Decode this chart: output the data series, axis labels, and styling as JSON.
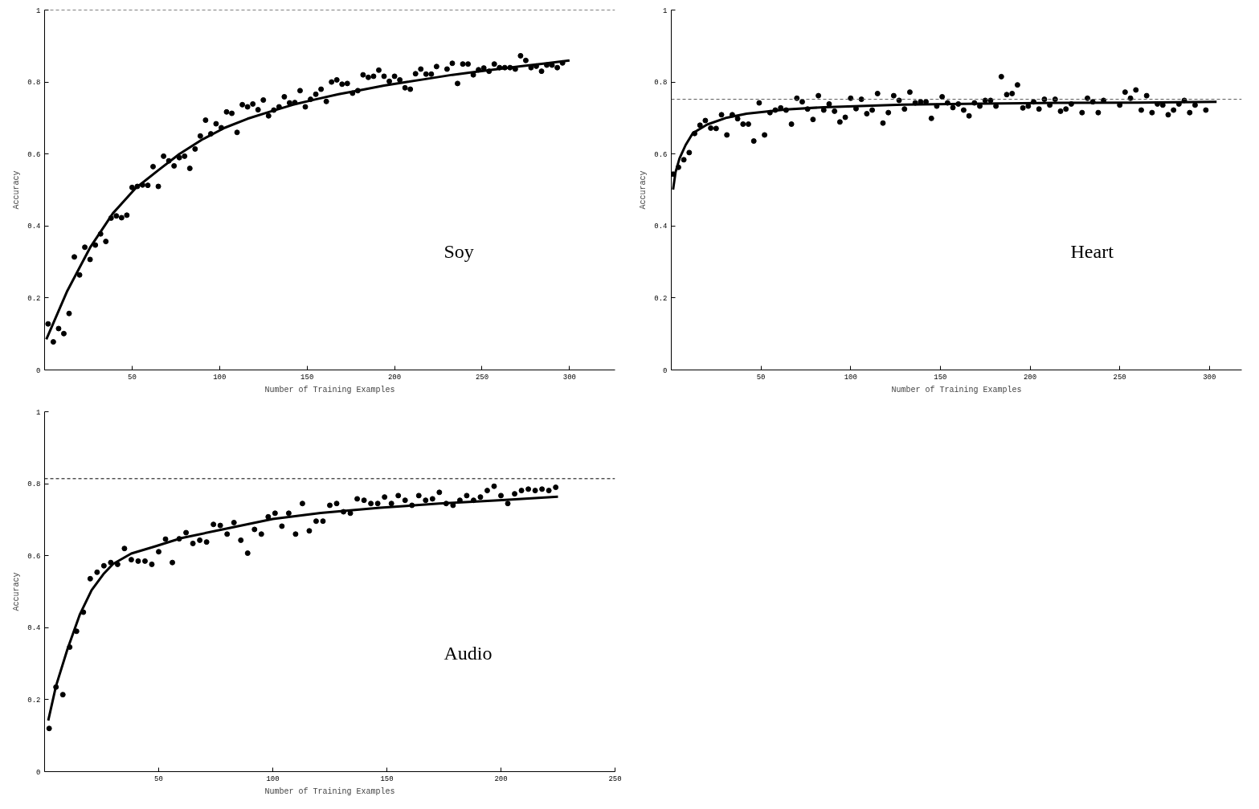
{
  "chart_data": [
    {
      "type": "scatter",
      "xlabel": "Number of Training Examples",
      "ylabel": "Accuracy",
      "annotations": [
        "Soy"
      ],
      "xlim": [
        0,
        326
      ],
      "ylim": [
        0,
        1
      ],
      "xticks": [
        50,
        100,
        150,
        200,
        250,
        300
      ],
      "yticks": [
        0,
        0.2,
        0.4,
        0.6,
        0.8,
        1
      ],
      "marker": "circle",
      "grid": false,
      "ref_lines": [
        {
          "axis": "y",
          "value": 1,
          "color": "#000000",
          "line_style": "dashed"
        }
      ],
      "series": [
        {
          "color": "#000000",
          "x": [
            2,
            5,
            8,
            11,
            14,
            17,
            20,
            23,
            26,
            29,
            32,
            35,
            38,
            41,
            44,
            47,
            50,
            53,
            56,
            59,
            62,
            65,
            68,
            71,
            74,
            77,
            80,
            83,
            86,
            89,
            92,
            95,
            98,
            101,
            104,
            107,
            110,
            113,
            116,
            119,
            122,
            125,
            128,
            131,
            134,
            137,
            140,
            143,
            146,
            149,
            152,
            155,
            158,
            161,
            164,
            167,
            170,
            173,
            176,
            179,
            182,
            185,
            188,
            191,
            194,
            197,
            200,
            203,
            206,
            209,
            212,
            215,
            218,
            221,
            224,
            230,
            233,
            236,
            239,
            242,
            245,
            248,
            251,
            254,
            257,
            260,
            263,
            266,
            269,
            272,
            275,
            278,
            281,
            284,
            287,
            290,
            293,
            296
          ],
          "values": [
            0.128,
            0.078,
            0.115,
            0.101,
            0.157,
            0.314,
            0.264,
            0.341,
            0.307,
            0.347,
            0.378,
            0.357,
            0.422,
            0.428,
            0.423,
            0.43,
            0.507,
            0.51,
            0.514,
            0.513,
            0.565,
            0.51,
            0.594,
            0.581,
            0.567,
            0.59,
            0.594,
            0.56,
            0.614,
            0.65,
            0.694,
            0.656,
            0.684,
            0.673,
            0.717,
            0.713,
            0.66,
            0.737,
            0.731,
            0.739,
            0.723,
            0.75,
            0.706,
            0.722,
            0.731,
            0.759,
            0.742,
            0.743,
            0.776,
            0.731,
            0.752,
            0.766,
            0.78,
            0.746,
            0.8,
            0.806,
            0.794,
            0.796,
            0.769,
            0.776,
            0.82,
            0.813,
            0.816,
            0.833,
            0.816,
            0.802,
            0.816,
            0.806,
            0.784,
            0.78,
            0.823,
            0.836,
            0.822,
            0.822,
            0.843,
            0.836,
            0.852,
            0.796,
            0.85,
            0.85,
            0.82,
            0.834,
            0.839,
            0.83,
            0.85,
            0.84,
            0.84,
            0.84,
            0.836,
            0.873,
            0.86,
            0.84,
            0.844,
            0.83,
            0.847,
            0.847,
            0.84,
            0.853
          ]
        },
        {
          "type": "line",
          "color": "#000000",
          "marker": "none",
          "line_style": "solid",
          "x": [
            1,
            13,
            26,
            39,
            52,
            65,
            77,
            90,
            103,
            116,
            129,
            142,
            155,
            168,
            181,
            194,
            207,
            220,
            233,
            246,
            259,
            272,
            285,
            300
          ],
          "values": [
            0.085,
            0.22,
            0.34,
            0.435,
            0.505,
            0.555,
            0.6,
            0.64,
            0.673,
            0.698,
            0.718,
            0.737,
            0.752,
            0.766,
            0.778,
            0.79,
            0.8,
            0.81,
            0.82,
            0.828,
            0.836,
            0.844,
            0.851,
            0.86
          ]
        }
      ]
    },
    {
      "type": "scatter",
      "xlabel": "Number of Training Examples",
      "ylabel": "Accuracy",
      "annotations": [
        "Heart"
      ],
      "xlim": [
        0,
        318
      ],
      "ylim": [
        0,
        1
      ],
      "xticks": [
        50,
        100,
        150,
        200,
        250,
        300
      ],
      "yticks": [
        0,
        0.2,
        0.4,
        0.6,
        0.8,
        1
      ],
      "marker": "circle",
      "grid": false,
      "ref_lines": [
        {
          "axis": "y",
          "value": 0.752,
          "color": "#555555",
          "line_style": "dashed"
        }
      ],
      "series": [
        {
          "color": "#000000",
          "x": [
            1,
            4,
            7,
            10,
            13,
            16,
            19,
            22,
            25,
            28,
            31,
            34,
            37,
            40,
            43,
            46,
            49,
            52,
            55,
            58,
            61,
            64,
            67,
            70,
            73,
            76,
            79,
            82,
            85,
            88,
            91,
            94,
            97,
            100,
            103,
            106,
            109,
            112,
            115,
            118,
            121,
            124,
            127,
            130,
            133,
            136,
            139,
            142,
            145,
            148,
            151,
            154,
            157,
            160,
            163,
            166,
            169,
            172,
            175,
            178,
            181,
            184,
            187,
            190,
            193,
            196,
            199,
            202,
            205,
            208,
            211,
            214,
            217,
            220,
            223,
            229,
            232,
            235,
            238,
            241,
            250,
            253,
            256,
            259,
            262,
            265,
            268,
            271,
            274,
            277,
            280,
            283,
            286,
            289,
            292,
            298
          ],
          "values": [
            0.544,
            0.563,
            0.584,
            0.604,
            0.657,
            0.68,
            0.693,
            0.672,
            0.671,
            0.709,
            0.653,
            0.709,
            0.698,
            0.683,
            0.683,
            0.636,
            0.742,
            0.653,
            0.715,
            0.722,
            0.728,
            0.722,
            0.683,
            0.755,
            0.745,
            0.725,
            0.696,
            0.762,
            0.722,
            0.739,
            0.719,
            0.689,
            0.702,
            0.755,
            0.726,
            0.752,
            0.712,
            0.722,
            0.768,
            0.686,
            0.715,
            0.762,
            0.749,
            0.725,
            0.772,
            0.742,
            0.745,
            0.745,
            0.699,
            0.733,
            0.759,
            0.742,
            0.729,
            0.739,
            0.722,
            0.706,
            0.742,
            0.733,
            0.749,
            0.749,
            0.733,
            0.815,
            0.765,
            0.768,
            0.792,
            0.728,
            0.733,
            0.745,
            0.725,
            0.752,
            0.736,
            0.752,
            0.719,
            0.725,
            0.739,
            0.715,
            0.755,
            0.745,
            0.715,
            0.749,
            0.736,
            0.772,
            0.755,
            0.778,
            0.722,
            0.762,
            0.715,
            0.739,
            0.736,
            0.709,
            0.722,
            0.739,
            0.749,
            0.715,
            0.736,
            0.722
          ]
        },
        {
          "type": "line",
          "color": "#000000",
          "marker": "none",
          "line_style": "solid",
          "x": [
            1,
            2.4,
            4.6,
            8,
            12,
            20,
            31,
            42,
            64,
            85,
            129,
            173,
            216,
            260,
            304
          ],
          "values": [
            0.501,
            0.55,
            0.588,
            0.625,
            0.658,
            0.682,
            0.701,
            0.712,
            0.724,
            0.73,
            0.737,
            0.74,
            0.742,
            0.743,
            0.745
          ]
        }
      ]
    },
    {
      "type": "scatter",
      "xlabel": "Number of Training Examples",
      "ylabel": "Accuracy",
      "annotations": [
        "Audio"
      ],
      "xlim": [
        0,
        250
      ],
      "ylim": [
        0,
        1
      ],
      "xticks": [
        50,
        100,
        150,
        200,
        250
      ],
      "yticks": [
        0,
        0.2,
        0.4,
        0.6,
        0.8,
        1
      ],
      "marker": "circle",
      "grid": false,
      "ref_lines": [
        {
          "axis": "y",
          "value": 0.814,
          "color": "#000000",
          "line_style": "dashed"
        }
      ],
      "series": [
        {
          "color": "#000000",
          "x": [
            2,
            5,
            8,
            11,
            14,
            17,
            20,
            23,
            26,
            29,
            32,
            35,
            38,
            41,
            44,
            47,
            50,
            53,
            56,
            59,
            62,
            65,
            68,
            71,
            74,
            77,
            80,
            83,
            86,
            89,
            92,
            95,
            98,
            101,
            104,
            107,
            110,
            113,
            116,
            119,
            122,
            125,
            128,
            131,
            134,
            137,
            140,
            143,
            146,
            149,
            152,
            155,
            158,
            161,
            164,
            167,
            170,
            173,
            176,
            179,
            182,
            185,
            188,
            191,
            194,
            197,
            200,
            203,
            206,
            209,
            212,
            215,
            218,
            221,
            224
          ],
          "values": [
            0.12,
            0.235,
            0.214,
            0.346,
            0.39,
            0.443,
            0.536,
            0.554,
            0.572,
            0.581,
            0.576,
            0.62,
            0.589,
            0.585,
            0.585,
            0.576,
            0.611,
            0.646,
            0.581,
            0.647,
            0.664,
            0.634,
            0.643,
            0.638,
            0.687,
            0.684,
            0.66,
            0.692,
            0.643,
            0.607,
            0.673,
            0.66,
            0.708,
            0.718,
            0.682,
            0.718,
            0.66,
            0.745,
            0.669,
            0.696,
            0.696,
            0.74,
            0.745,
            0.722,
            0.718,
            0.758,
            0.754,
            0.745,
            0.745,
            0.763,
            0.745,
            0.767,
            0.754,
            0.74,
            0.767,
            0.754,
            0.758,
            0.776,
            0.745,
            0.74,
            0.754,
            0.767,
            0.754,
            0.763,
            0.781,
            0.793,
            0.767,
            0.745,
            0.772,
            0.781,
            0.785,
            0.781,
            0.785,
            0.781,
            0.79
          ]
        },
        {
          "type": "line",
          "color": "#000000",
          "marker": "none",
          "line_style": "solid",
          "x": [
            1.6,
            5,
            10,
            15.4,
            20.6,
            25.8,
            30,
            38,
            48,
            60,
            78,
            100,
            121,
            147,
            173,
            199,
            225
          ],
          "values": [
            0.142,
            0.238,
            0.34,
            0.436,
            0.504,
            0.549,
            0.577,
            0.606,
            0.625,
            0.649,
            0.673,
            0.702,
            0.719,
            0.733,
            0.745,
            0.754,
            0.764
          ]
        }
      ]
    }
  ]
}
